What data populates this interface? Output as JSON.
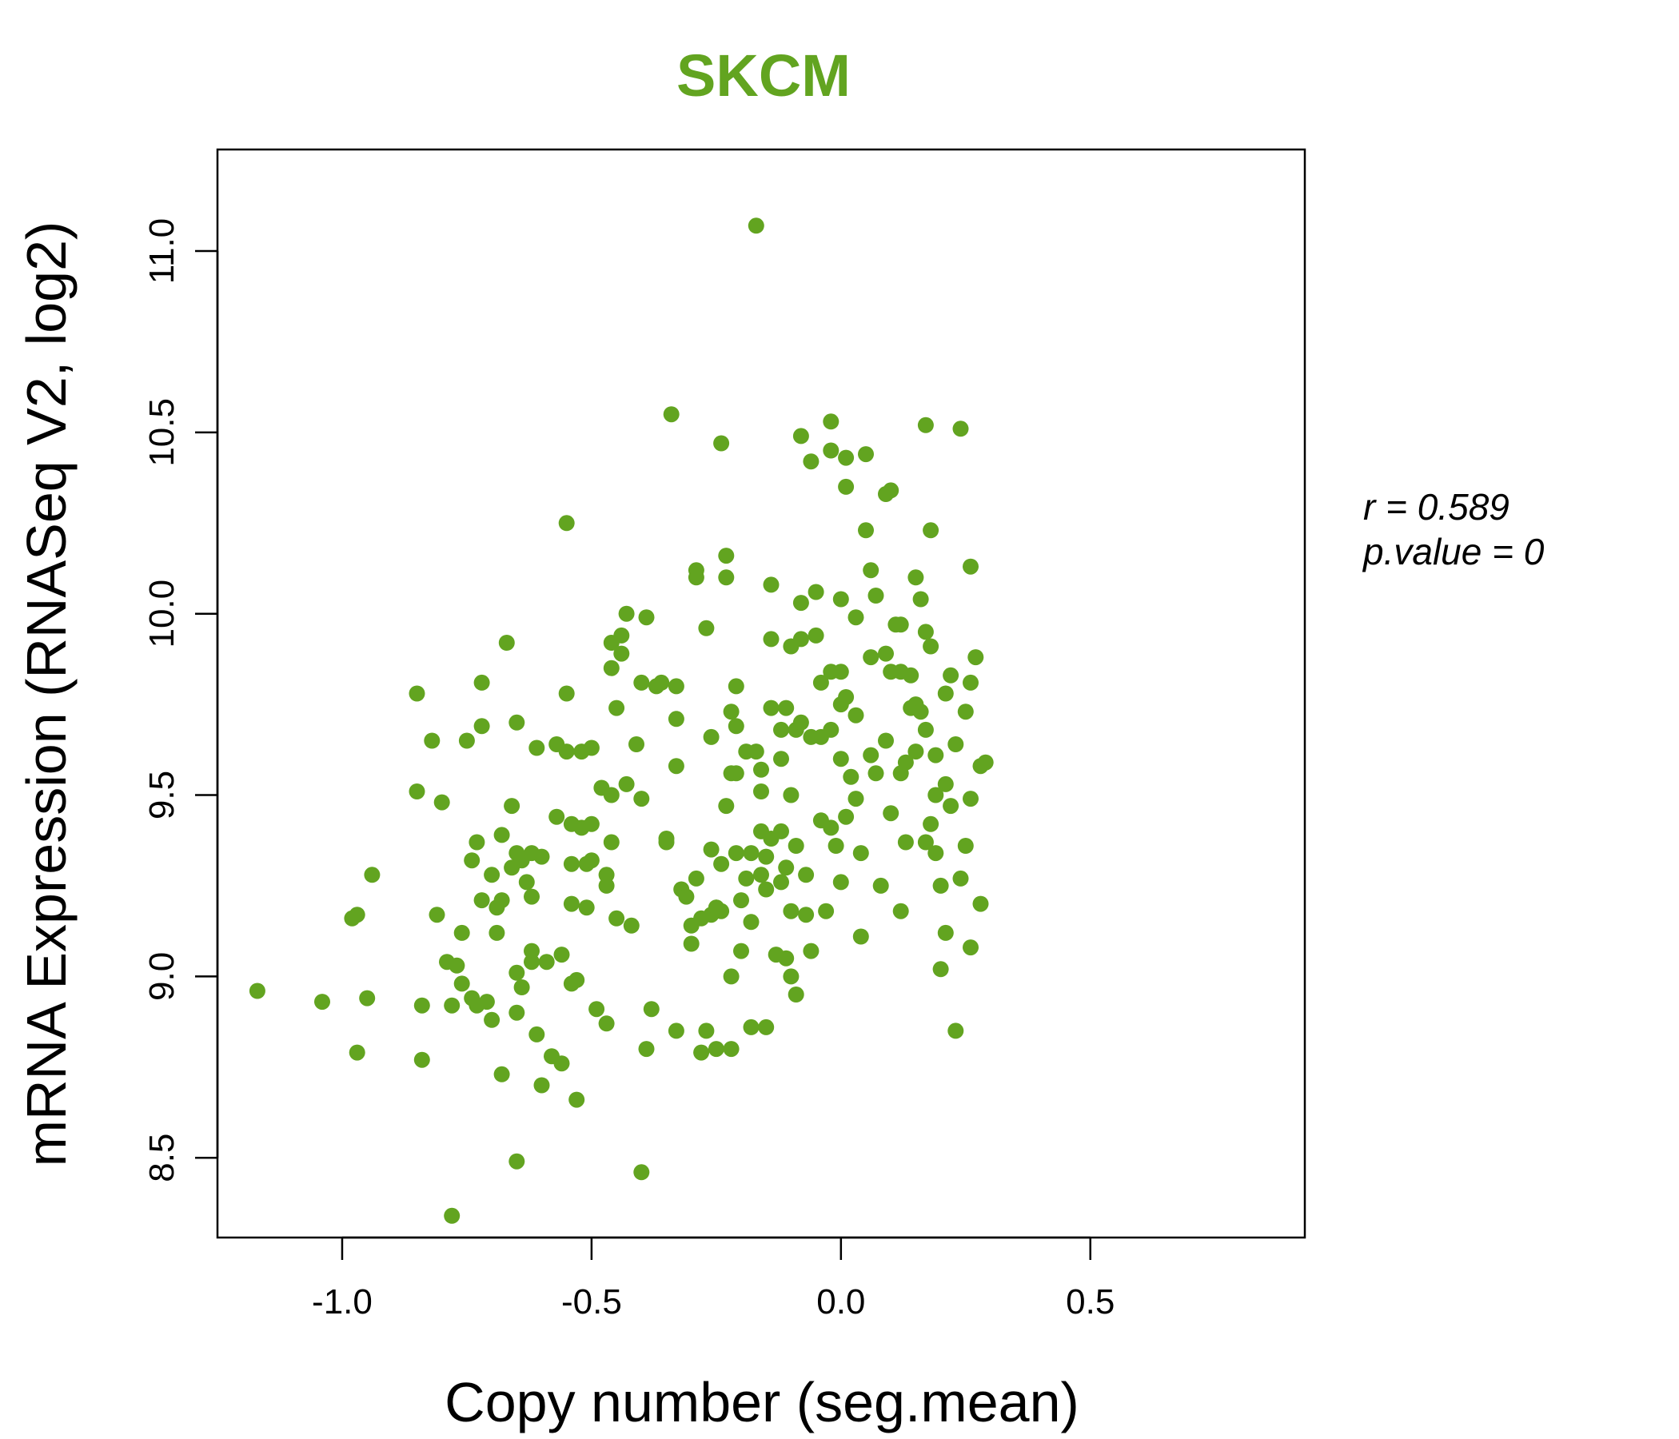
{
  "colors": {
    "accent": "#62a420",
    "axis": "#000000",
    "background": "#ffffff"
  },
  "stats": {
    "r_label": "r = 0.589",
    "p_label": "p.value = 0"
  },
  "chart_data": {
    "type": "scatter",
    "title": "SKCM",
    "xlabel": "Copy number (seg.mean)",
    "ylabel": "mRNA Expression (RNASeq V2, log2)",
    "xlim": [
      -1.25,
      0.93
    ],
    "ylim": [
      8.28,
      11.28
    ],
    "xticks": [
      -1.0,
      -0.5,
      0.0,
      0.5
    ],
    "xtick_labels": [
      "-1.0",
      "-0.5",
      "0.0",
      "0.5"
    ],
    "yticks": [
      8.5,
      9.0,
      9.5,
      10.0,
      10.5,
      11.0
    ],
    "ytick_labels": [
      "8.5",
      "9.0",
      "9.5",
      "10.0",
      "10.5",
      "11.0"
    ],
    "series": [
      {
        "name": "samples",
        "points": [
          [
            -1.17,
            8.96
          ],
          [
            -1.04,
            8.93
          ],
          [
            -0.98,
            9.16
          ],
          [
            -0.97,
            9.17
          ],
          [
            -0.97,
            8.79
          ],
          [
            -0.95,
            8.94
          ],
          [
            -0.94,
            9.28
          ],
          [
            -0.85,
            9.78
          ],
          [
            -0.85,
            9.51
          ],
          [
            -0.84,
            8.92
          ],
          [
            -0.84,
            8.77
          ],
          [
            -0.82,
            9.65
          ],
          [
            -0.81,
            9.17
          ],
          [
            -0.8,
            9.48
          ],
          [
            -0.79,
            9.04
          ],
          [
            -0.78,
            8.92
          ],
          [
            -0.78,
            8.34
          ],
          [
            -0.77,
            9.03
          ],
          [
            -0.76,
            9.12
          ],
          [
            -0.76,
            8.98
          ],
          [
            -0.75,
            9.65
          ],
          [
            -0.74,
            9.32
          ],
          [
            -0.74,
            8.94
          ],
          [
            -0.73,
            9.37
          ],
          [
            -0.73,
            8.92
          ],
          [
            -0.72,
            9.81
          ],
          [
            -0.72,
            9.69
          ],
          [
            -0.72,
            9.21
          ],
          [
            -0.71,
            8.93
          ],
          [
            -0.7,
            9.28
          ],
          [
            -0.7,
            8.88
          ],
          [
            -0.69,
            9.19
          ],
          [
            -0.69,
            9.12
          ],
          [
            -0.68,
            9.39
          ],
          [
            -0.68,
            9.21
          ],
          [
            -0.68,
            8.73
          ],
          [
            -0.67,
            9.92
          ],
          [
            -0.66,
            9.47
          ],
          [
            -0.66,
            9.3
          ],
          [
            -0.65,
            9.7
          ],
          [
            -0.65,
            9.34
          ],
          [
            -0.65,
            9.01
          ],
          [
            -0.65,
            8.9
          ],
          [
            -0.65,
            8.49
          ],
          [
            -0.64,
            9.32
          ],
          [
            -0.64,
            8.97
          ],
          [
            -0.63,
            9.26
          ],
          [
            -0.62,
            9.34
          ],
          [
            -0.62,
            9.22
          ],
          [
            -0.62,
            9.07
          ],
          [
            -0.62,
            9.04
          ],
          [
            -0.61,
            9.63
          ],
          [
            -0.61,
            8.84
          ],
          [
            -0.6,
            9.33
          ],
          [
            -0.6,
            8.7
          ],
          [
            -0.59,
            9.04
          ],
          [
            -0.58,
            8.78
          ],
          [
            -0.57,
            9.64
          ],
          [
            -0.57,
            9.44
          ],
          [
            -0.56,
            9.06
          ],
          [
            -0.56,
            8.76
          ],
          [
            -0.55,
            10.25
          ],
          [
            -0.55,
            9.78
          ],
          [
            -0.55,
            9.62
          ],
          [
            -0.54,
            9.42
          ],
          [
            -0.54,
            9.31
          ],
          [
            -0.54,
            9.2
          ],
          [
            -0.54,
            8.98
          ],
          [
            -0.53,
            8.99
          ],
          [
            -0.53,
            8.66
          ],
          [
            -0.52,
            9.62
          ],
          [
            -0.52,
            9.41
          ],
          [
            -0.51,
            9.31
          ],
          [
            -0.51,
            9.19
          ],
          [
            -0.5,
            9.63
          ],
          [
            -0.5,
            9.42
          ],
          [
            -0.5,
            9.32
          ],
          [
            -0.49,
            8.91
          ],
          [
            -0.48,
            9.52
          ],
          [
            -0.47,
            9.28
          ],
          [
            -0.47,
            9.25
          ],
          [
            -0.47,
            8.87
          ],
          [
            -0.46,
            9.92
          ],
          [
            -0.46,
            9.85
          ],
          [
            -0.46,
            9.5
          ],
          [
            -0.46,
            9.37
          ],
          [
            -0.45,
            9.74
          ],
          [
            -0.45,
            9.16
          ],
          [
            -0.44,
            9.94
          ],
          [
            -0.44,
            9.89
          ],
          [
            -0.43,
            10.0
          ],
          [
            -0.43,
            9.53
          ],
          [
            -0.42,
            9.14
          ],
          [
            -0.41,
            9.64
          ],
          [
            -0.4,
            9.81
          ],
          [
            -0.4,
            9.49
          ],
          [
            -0.4,
            8.46
          ],
          [
            -0.39,
            9.99
          ],
          [
            -0.38,
            8.91
          ],
          [
            -0.37,
            9.8
          ],
          [
            -0.36,
            9.81
          ],
          [
            -0.35,
            9.37
          ],
          [
            -0.34,
            10.55
          ],
          [
            -0.33,
            9.8
          ],
          [
            -0.33,
            9.71
          ],
          [
            -0.33,
            9.58
          ],
          [
            -0.32,
            9.24
          ],
          [
            -0.31,
            9.22
          ],
          [
            -0.3,
            9.14
          ],
          [
            -0.3,
            9.09
          ],
          [
            -0.29,
            10.12
          ],
          [
            -0.29,
            10.1
          ],
          [
            -0.29,
            9.27
          ],
          [
            -0.28,
            9.16
          ],
          [
            -0.28,
            8.79
          ],
          [
            -0.27,
            9.96
          ],
          [
            -0.26,
            9.66
          ],
          [
            -0.26,
            9.17
          ],
          [
            -0.26,
            9.35
          ],
          [
            -0.25,
            9.19
          ],
          [
            -0.25,
            9.19
          ],
          [
            -0.25,
            8.8
          ],
          [
            -0.24,
            10.47
          ],
          [
            -0.24,
            9.31
          ],
          [
            -0.24,
            9.18
          ],
          [
            -0.23,
            10.16
          ],
          [
            -0.23,
            10.1
          ],
          [
            -0.23,
            9.47
          ],
          [
            -0.22,
            9.73
          ],
          [
            -0.22,
            9.56
          ],
          [
            -0.22,
            9.0
          ],
          [
            -0.22,
            8.8
          ],
          [
            -0.21,
            9.8
          ],
          [
            -0.21,
            9.69
          ],
          [
            -0.21,
            9.56
          ],
          [
            -0.21,
            9.34
          ],
          [
            -0.2,
            9.21
          ],
          [
            -0.2,
            9.07
          ],
          [
            -0.19,
            9.62
          ],
          [
            -0.19,
            9.27
          ],
          [
            -0.18,
            9.34
          ],
          [
            -0.18,
            9.15
          ],
          [
            -0.18,
            8.86
          ],
          [
            -0.17,
            11.07
          ],
          [
            -0.17,
            9.62
          ],
          [
            -0.16,
            9.57
          ],
          [
            -0.16,
            9.51
          ],
          [
            -0.16,
            9.4
          ],
          [
            -0.16,
            9.28
          ],
          [
            -0.15,
            9.33
          ],
          [
            -0.15,
            9.24
          ],
          [
            -0.15,
            8.86
          ],
          [
            -0.14,
            10.08
          ],
          [
            -0.14,
            9.93
          ],
          [
            -0.14,
            9.74
          ],
          [
            -0.14,
            9.38
          ],
          [
            -0.13,
            9.06
          ],
          [
            -0.12,
            9.68
          ],
          [
            -0.12,
            9.6
          ],
          [
            -0.12,
            9.4
          ],
          [
            -0.12,
            9.26
          ],
          [
            -0.11,
            9.74
          ],
          [
            -0.11,
            9.3
          ],
          [
            -0.11,
            9.05
          ],
          [
            -0.1,
            9.91
          ],
          [
            -0.1,
            9.5
          ],
          [
            -0.1,
            9.18
          ],
          [
            -0.1,
            9.0
          ],
          [
            -0.09,
            9.68
          ],
          [
            -0.09,
            9.36
          ],
          [
            -0.09,
            8.95
          ],
          [
            -0.08,
            10.49
          ],
          [
            -0.08,
            10.03
          ],
          [
            -0.08,
            9.93
          ],
          [
            -0.08,
            9.7
          ],
          [
            -0.07,
            9.28
          ],
          [
            -0.07,
            9.17
          ],
          [
            -0.06,
            10.42
          ],
          [
            -0.06,
            9.66
          ],
          [
            -0.06,
            9.07
          ],
          [
            -0.05,
            10.06
          ],
          [
            -0.05,
            9.94
          ],
          [
            -0.04,
            9.81
          ],
          [
            -0.04,
            9.66
          ],
          [
            -0.04,
            9.43
          ],
          [
            -0.03,
            9.18
          ],
          [
            -0.02,
            10.53
          ],
          [
            -0.02,
            10.45
          ],
          [
            -0.02,
            9.84
          ],
          [
            -0.02,
            9.68
          ],
          [
            -0.02,
            9.41
          ],
          [
            -0.01,
            9.36
          ],
          [
            0.0,
            10.04
          ],
          [
            0.0,
            9.84
          ],
          [
            0.0,
            9.75
          ],
          [
            0.0,
            9.6
          ],
          [
            0.0,
            9.26
          ],
          [
            0.01,
            10.43
          ],
          [
            0.01,
            10.35
          ],
          [
            0.01,
            9.77
          ],
          [
            0.01,
            9.44
          ],
          [
            0.02,
            9.55
          ],
          [
            0.03,
            9.99
          ],
          [
            0.03,
            9.72
          ],
          [
            0.03,
            9.49
          ],
          [
            0.04,
            9.34
          ],
          [
            0.04,
            9.11
          ],
          [
            0.05,
            10.44
          ],
          [
            0.05,
            10.23
          ],
          [
            0.06,
            10.12
          ],
          [
            0.06,
            9.88
          ],
          [
            0.06,
            9.61
          ],
          [
            0.07,
            10.05
          ],
          [
            0.07,
            9.56
          ],
          [
            0.08,
            9.25
          ],
          [
            0.09,
            10.33
          ],
          [
            0.09,
            9.89
          ],
          [
            0.09,
            9.65
          ],
          [
            0.1,
            10.34
          ],
          [
            0.1,
            9.84
          ],
          [
            0.1,
            9.45
          ],
          [
            0.11,
            9.97
          ],
          [
            0.12,
            9.97
          ],
          [
            0.12,
            9.84
          ],
          [
            0.12,
            9.56
          ],
          [
            0.12,
            9.18
          ],
          [
            0.13,
            9.59
          ],
          [
            0.13,
            9.37
          ],
          [
            0.14,
            9.83
          ],
          [
            0.14,
            9.74
          ],
          [
            0.15,
            10.1
          ],
          [
            0.15,
            9.75
          ],
          [
            0.15,
            9.62
          ],
          [
            0.16,
            10.04
          ],
          [
            0.16,
            9.73
          ],
          [
            0.17,
            10.52
          ],
          [
            0.17,
            9.95
          ],
          [
            0.17,
            9.68
          ],
          [
            0.17,
            9.37
          ],
          [
            0.18,
            10.23
          ],
          [
            0.18,
            9.91
          ],
          [
            0.18,
            9.42
          ],
          [
            0.19,
            9.61
          ],
          [
            0.19,
            9.5
          ],
          [
            0.19,
            9.34
          ],
          [
            0.2,
            9.25
          ],
          [
            0.2,
            9.02
          ],
          [
            0.21,
            9.78
          ],
          [
            0.21,
            9.53
          ],
          [
            0.21,
            9.12
          ],
          [
            0.22,
            9.83
          ],
          [
            0.22,
            9.47
          ],
          [
            0.23,
            9.64
          ],
          [
            0.23,
            8.85
          ],
          [
            0.24,
            10.51
          ],
          [
            0.24,
            9.27
          ],
          [
            0.25,
            9.73
          ],
          [
            0.25,
            9.36
          ],
          [
            0.26,
            10.13
          ],
          [
            0.26,
            9.81
          ],
          [
            0.26,
            9.49
          ],
          [
            0.26,
            9.08
          ],
          [
            0.27,
            9.88
          ],
          [
            0.28,
            9.58
          ],
          [
            0.28,
            9.2
          ],
          [
            0.29,
            9.59
          ],
          [
            -0.33,
            8.85
          ],
          [
            -0.39,
            8.8
          ],
          [
            -0.27,
            8.85
          ],
          [
            -0.35,
            9.38
          ]
        ]
      }
    ]
  }
}
